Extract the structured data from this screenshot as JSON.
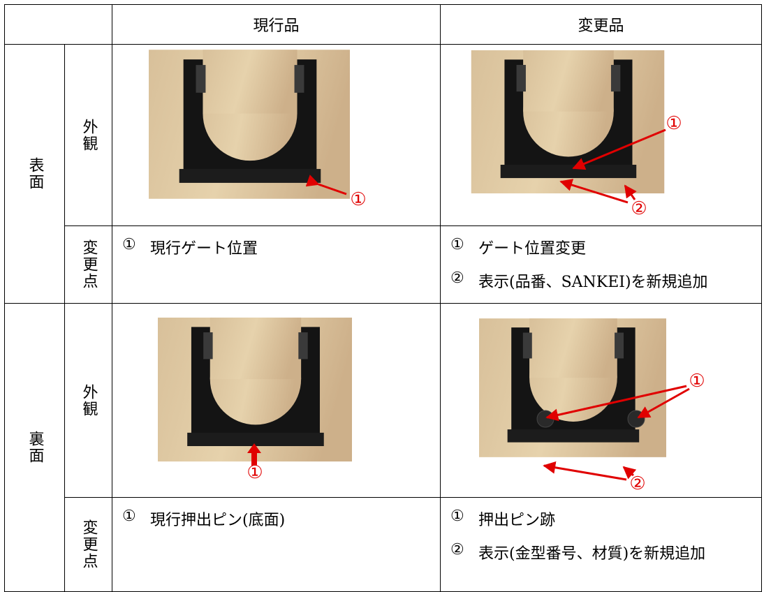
{
  "table": {
    "columns": [
      "現行品",
      "変更品"
    ],
    "sections": [
      {
        "side": "表面",
        "appearance": "外観",
        "changes": "変更点",
        "current": {
          "callouts": [
            "①"
          ],
          "notes": [
            {
              "marker": "①",
              "text": "現行ゲート位置"
            }
          ]
        },
        "changed": {
          "callouts": [
            "①",
            "②"
          ],
          "notes": [
            {
              "marker": "①",
              "text": "ゲート位置変更"
            },
            {
              "marker": "②",
              "text": "表示(品番、SANKEI)を新規追加"
            }
          ]
        }
      },
      {
        "side": "裏面",
        "appearance": "外観",
        "changes": "変更点",
        "current": {
          "callouts": [
            "①"
          ],
          "notes": [
            {
              "marker": "①",
              "text": "現行押出ピン(底面)"
            }
          ]
        },
        "changed": {
          "callouts": [
            "①",
            "②"
          ],
          "notes": [
            {
              "marker": "①",
              "text": "押出ピン跡"
            },
            {
              "marker": "②",
              "text": "表示(金型番号、材質)を新規追加"
            }
          ]
        }
      }
    ]
  }
}
